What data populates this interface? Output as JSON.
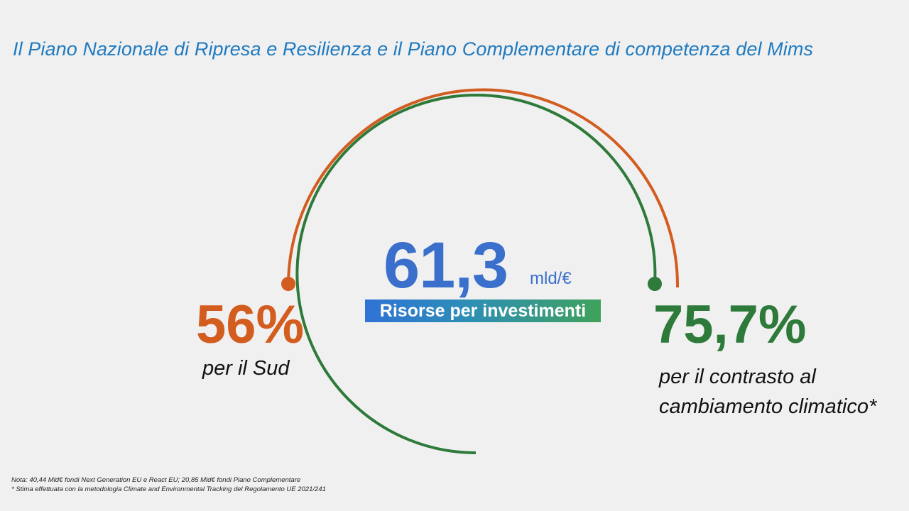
{
  "title": "Il Piano Nazionale di Ripresa e Resilienza  e il Piano Complementare  di competenza del Mims",
  "center": {
    "value": "61,3",
    "unit": "mld/€",
    "banner": "Risorse per investimenti"
  },
  "left_stat": {
    "value": "56%",
    "label": "per il Sud"
  },
  "right_stat": {
    "value": "75,7%",
    "label_line1": "per il contrasto al",
    "label_line2": "cambiamento climatico*"
  },
  "notes": {
    "line1": "Nota: 40,44 Mld€ fondi Next Generation EU e React EU; 20,85 Mld€ fondi Piano Complementare",
    "line2": "* Stima effettuata con la metodologia Climate and Environmental Tracking del Regolamento UE 2021/241"
  },
  "colors": {
    "title": "#1f7ac0",
    "sud": "#d35c1f",
    "clima": "#2d7a3a",
    "main": "#3a6fcb",
    "background": "#f0f0f0"
  }
}
